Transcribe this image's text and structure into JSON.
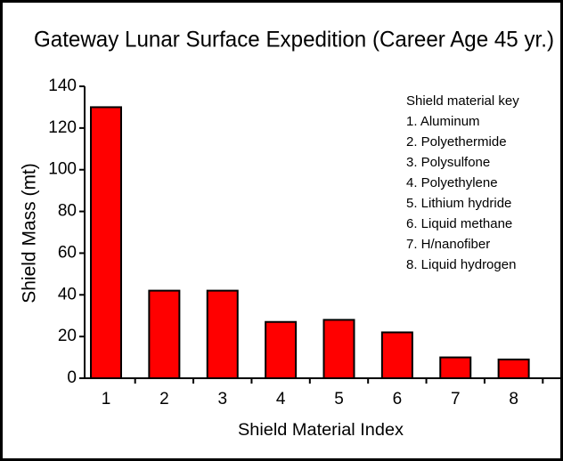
{
  "chart_data": {
    "type": "bar",
    "title": "Gateway Lunar Surface Expedition (Career Age 45 yr.)",
    "x_label": "Shield Material Index",
    "y_label": "Shield Mass (mt)",
    "categories": [
      "1",
      "2",
      "3",
      "4",
      "5",
      "6",
      "7",
      "8"
    ],
    "values": [
      130,
      42,
      42,
      27,
      28,
      22,
      10,
      9
    ],
    "color": "#ff0000",
    "ylim": [
      0,
      140
    ],
    "yticks": [
      0,
      20,
      40,
      60,
      80,
      100,
      120,
      140
    ],
    "grid": false,
    "key_title": "Shield material key",
    "key": [
      "1. Aluminum",
      "2. Polyethermide",
      "3. Polysulfone",
      "4. Polyethylene",
      "5. Lithium hydride",
      "6. Liquid methane",
      "7. H/nanofiber",
      "8. Liquid hydrogen"
    ]
  }
}
